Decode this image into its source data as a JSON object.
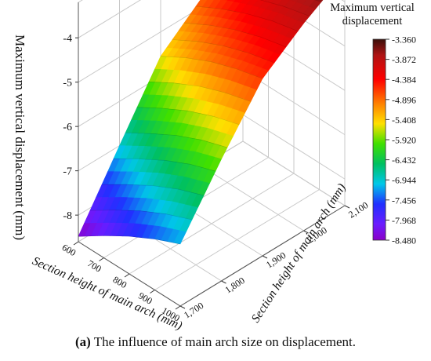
{
  "caption": {
    "prefix": "(a)",
    "text": " The influence of main arch size on displacement."
  },
  "chart_data": {
    "type": "surface3d",
    "title": "",
    "xlabel": "Section height of main arch (mm)",
    "ylabel": "Section height of main arch (mm)",
    "zlabel": "Maximum vertical displacement (mm)",
    "x_ticks": [
      "600",
      "700",
      "800",
      "900",
      "1000"
    ],
    "x_range": [
      600,
      1000
    ],
    "y_ticks": [
      "1,700",
      "1,800",
      "1,900",
      "2,000",
      "2,100"
    ],
    "y_range": [
      1700,
      2100
    ],
    "z_ticks": [
      "-4",
      "-5",
      "-6",
      "-7",
      "-8"
    ],
    "z_range": [
      -8.6,
      -3.2
    ],
    "x": [
      600,
      700,
      800,
      900,
      1000
    ],
    "y": [
      1700,
      1800,
      1900,
      2000,
      2100
    ],
    "z": [
      [
        -8.48,
        -8.1,
        -7.75,
        -7.45,
        -7.2
      ],
      [
        -7.0,
        -6.65,
        -6.32,
        -6.05,
        -5.85
      ],
      [
        -5.55,
        -5.22,
        -4.95,
        -4.75,
        -4.6
      ],
      [
        -4.8,
        -4.5,
        -4.25,
        -4.05,
        -3.92
      ],
      [
        -4.3,
        -4.05,
        -3.82,
        -3.6,
        -3.36
      ]
    ],
    "colorbar": {
      "title": "Maximum vertical displacement",
      "ticks": [
        "-3.360",
        "-3.872",
        "-4.384",
        "-4.896",
        "-5.408",
        "-5.920",
        "-6.432",
        "-6.944",
        "-7.456",
        "-7.968",
        "-8.480"
      ],
      "colors": [
        "#3a0f0a",
        "#b01414",
        "#ff0000",
        "#ff8000",
        "#ffe000",
        "#40e000",
        "#00c060",
        "#00c8e8",
        "#2030ff",
        "#6a1cff",
        "#8a00c8"
      ]
    },
    "grid": true
  }
}
